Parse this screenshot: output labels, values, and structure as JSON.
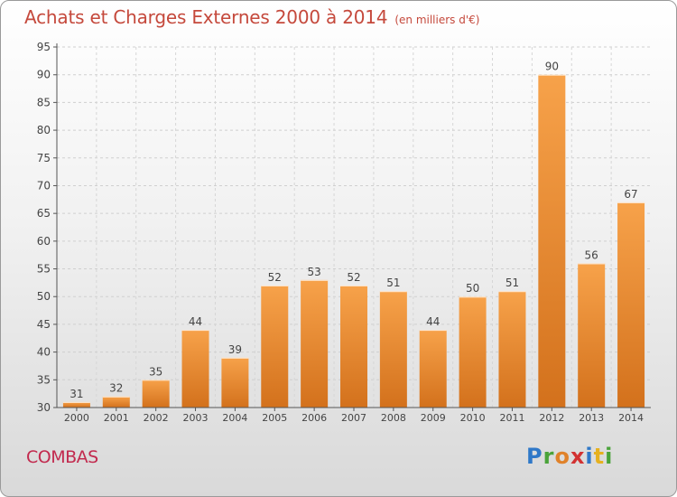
{
  "chart_data": {
    "type": "bar",
    "title": "Achats et Charges Externes 2000 à 2014",
    "subtitle": "(en milliers d'€)",
    "categories": [
      "2000",
      "2001",
      "2002",
      "2003",
      "2004",
      "2005",
      "2006",
      "2007",
      "2008",
      "2009",
      "2010",
      "2011",
      "2012",
      "2013",
      "2014"
    ],
    "values": [
      31,
      32,
      35,
      44,
      39,
      52,
      53,
      52,
      51,
      44,
      50,
      51,
      90,
      56,
      67
    ],
    "ylim": [
      30,
      95
    ],
    "yticks": [
      30,
      35,
      40,
      45,
      50,
      55,
      60,
      65,
      70,
      75,
      80,
      85,
      90,
      95
    ],
    "grid": true,
    "bar_color_top": "#f7a24a",
    "bar_color_bottom": "#d3711c"
  },
  "footer": {
    "place": "COMBAS",
    "logo_letters": [
      "P",
      "r",
      "o",
      "x",
      "i",
      "t",
      "i"
    ]
  },
  "colors": {
    "title": "#c5493c",
    "place": "#c22a4e",
    "axis": "#444444"
  }
}
